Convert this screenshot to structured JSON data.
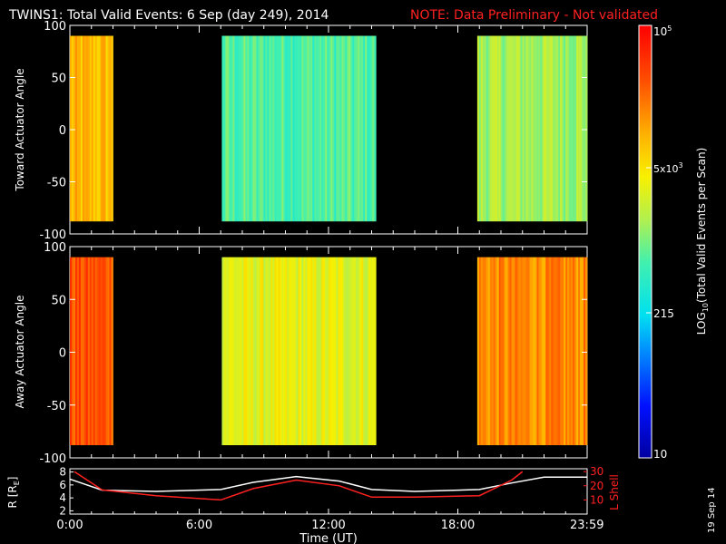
{
  "header": {
    "title": "TWINS1: Total Valid Events:  6 Sep (day 249), 2014",
    "note": "NOTE: Data Preliminary - Not validated"
  },
  "panels": {
    "top": {
      "ylabel": "Toward Actuator Angle"
    },
    "bottom": {
      "ylabel": "Away Actuator Angle"
    },
    "orbit": {
      "ylabel_left": "R [R",
      "ylabel_left_sub": "E",
      "ylabel_left_end": "]",
      "ylabel_right": "L Shell"
    }
  },
  "xaxis": {
    "label": "Time (UT)",
    "ticks": [
      "0:00",
      "6:00",
      "12:00",
      "18:00",
      "23:59"
    ]
  },
  "colorbar": {
    "label_prefix": "LOG",
    "label_sub": "10",
    "label_suffix": "(Total Valid Events per Scan)",
    "tick_top": "10",
    "tick_top_exp": "5",
    "tick_mid_base": "5x10",
    "tick_mid_exp": "3",
    "tick_215": "215",
    "tick_bottom": "10"
  },
  "side_date": "19 Sep 14",
  "colors": {
    "note": "#ff2020",
    "l_shell": "#ff2020",
    "r_line": "#ffffff"
  },
  "chart_data": [
    {
      "type": "heatmap",
      "panel": "top",
      "x_unit": "hours UT",
      "xlim": [
        0,
        24
      ],
      "ylim": [
        -100,
        100
      ],
      "yticks": [
        100,
        50,
        0,
        -50,
        -100
      ],
      "y_coverage": [
        -88,
        90
      ],
      "color_scale": "log10",
      "zlim": [
        10,
        100000
      ],
      "segments": [
        {
          "start": 0.0,
          "end": 2.0,
          "typical_value": 8000
        },
        {
          "start": 7.05,
          "end": 14.2,
          "typical_value": 700
        },
        {
          "start": 18.9,
          "end": 24.0,
          "typical_value": 1500
        }
      ]
    },
    {
      "type": "heatmap",
      "panel": "bottom",
      "x_unit": "hours UT",
      "xlim": [
        0,
        24
      ],
      "ylim": [
        -100,
        100
      ],
      "yticks": [
        100,
        50,
        0,
        -50,
        -100
      ],
      "y_coverage": [
        -88,
        90
      ],
      "color_scale": "log10",
      "zlim": [
        10,
        100000
      ],
      "segments": [
        {
          "start": 0.0,
          "end": 2.0,
          "typical_value": 30000
        },
        {
          "start": 7.05,
          "end": 14.2,
          "typical_value": 3000
        },
        {
          "start": 18.9,
          "end": 24.0,
          "typical_value": 15000
        }
      ]
    },
    {
      "type": "line",
      "panel": "orbit",
      "x_unit": "hours UT",
      "xlim": [
        0,
        24
      ],
      "yticks_left": [
        2,
        4,
        6,
        8
      ],
      "ylim_left": [
        1.5,
        8.5
      ],
      "yticks_right": [
        10,
        20,
        30
      ],
      "ylim_right": [
        0,
        32
      ],
      "series": [
        {
          "name": "R",
          "axis": "left",
          "x": [
            0,
            1.5,
            4,
            7,
            8.5,
            10.5,
            12.5,
            14,
            16,
            19,
            20.5,
            22,
            24
          ],
          "y": [
            6.9,
            5.2,
            5.0,
            5.3,
            6.4,
            7.3,
            6.6,
            5.3,
            5.0,
            5.3,
            6.3,
            7.2,
            7.2
          ]
        },
        {
          "name": "L Shell",
          "axis": "right",
          "x": [
            0.2,
            1.5,
            4,
            7,
            8.5,
            10.5,
            12.5,
            14,
            16,
            19,
            20.5,
            21
          ],
          "y": [
            30,
            17,
            13,
            10,
            18,
            24,
            20,
            12,
            12,
            13,
            24,
            30
          ]
        }
      ]
    }
  ]
}
